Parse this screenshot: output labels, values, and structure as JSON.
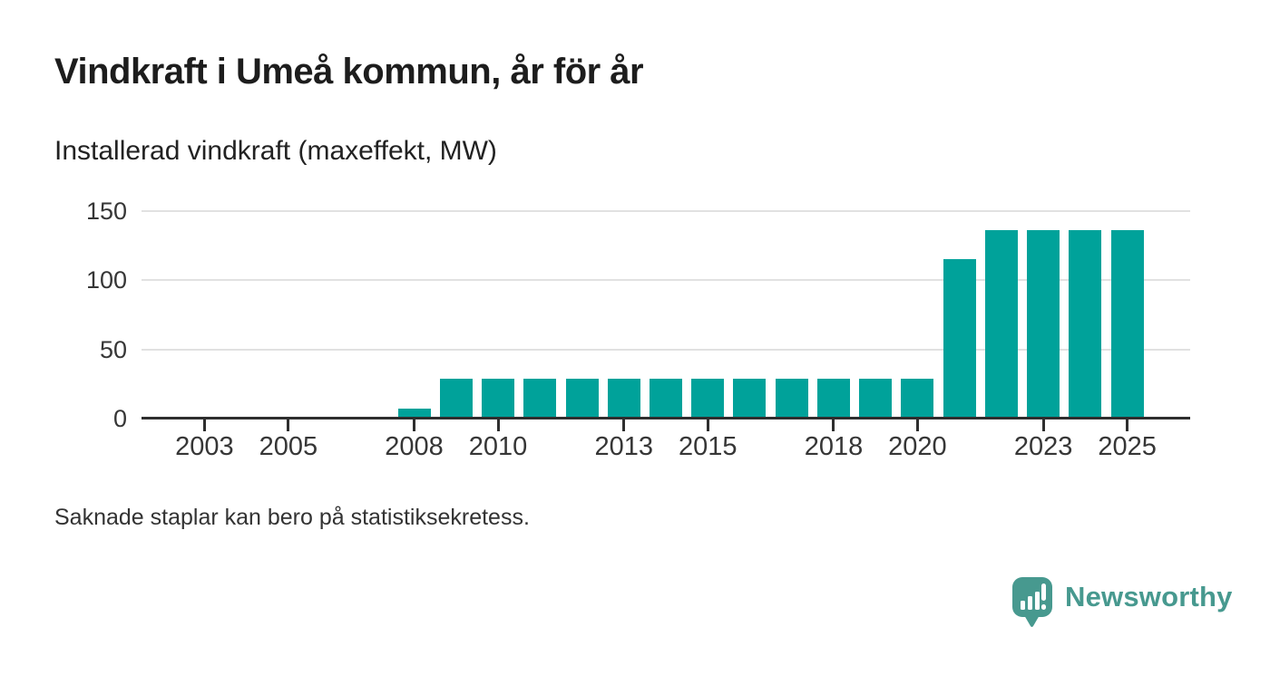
{
  "header": {
    "title": "Vindkraft i Umeå kommun, år för år",
    "subtitle": "Installerad vindkraft (maxeffekt, MW)"
  },
  "footer": {
    "note": "Saknade staplar kan bero på statistiksekretess.",
    "brand": "Newsworthy"
  },
  "colors": {
    "bar": "#00a29a",
    "brand": "#47998f",
    "grid": "#e1e1e1",
    "axis": "#2e2e2e",
    "axis_text": "#363636",
    "title_text": "#1d1d1d"
  },
  "chart_data": {
    "type": "bar",
    "title": "Vindkraft i Umeå kommun, år för år",
    "subtitle": "Installerad vindkraft (maxeffekt, MW)",
    "ylabel": "Installerad vindkraft (maxeffekt, MW)",
    "xlabel": "",
    "categories": [
      2002,
      2003,
      2004,
      2005,
      2006,
      2007,
      2008,
      2009,
      2010,
      2011,
      2012,
      2013,
      2014,
      2015,
      2016,
      2017,
      2018,
      2019,
      2020,
      2021,
      2022,
      2023,
      2024,
      2025,
      2026
    ],
    "values": [
      null,
      null,
      null,
      null,
      null,
      null,
      7,
      29,
      29,
      29,
      29,
      29,
      29,
      29,
      29,
      29,
      29,
      29,
      29,
      115,
      136,
      136,
      136,
      136,
      null
    ],
    "missing_years_note": "Saknade staplar kan bero på statistiksekretess.",
    "ylim": [
      0,
      150
    ],
    "yticks": [
      0,
      50,
      100,
      150
    ],
    "xticks": [
      2003,
      2005,
      2008,
      2010,
      2013,
      2015,
      2018,
      2020,
      2023,
      2025
    ],
    "grid": "horizontal",
    "legend": "none",
    "bar_color": "#00a29a"
  }
}
